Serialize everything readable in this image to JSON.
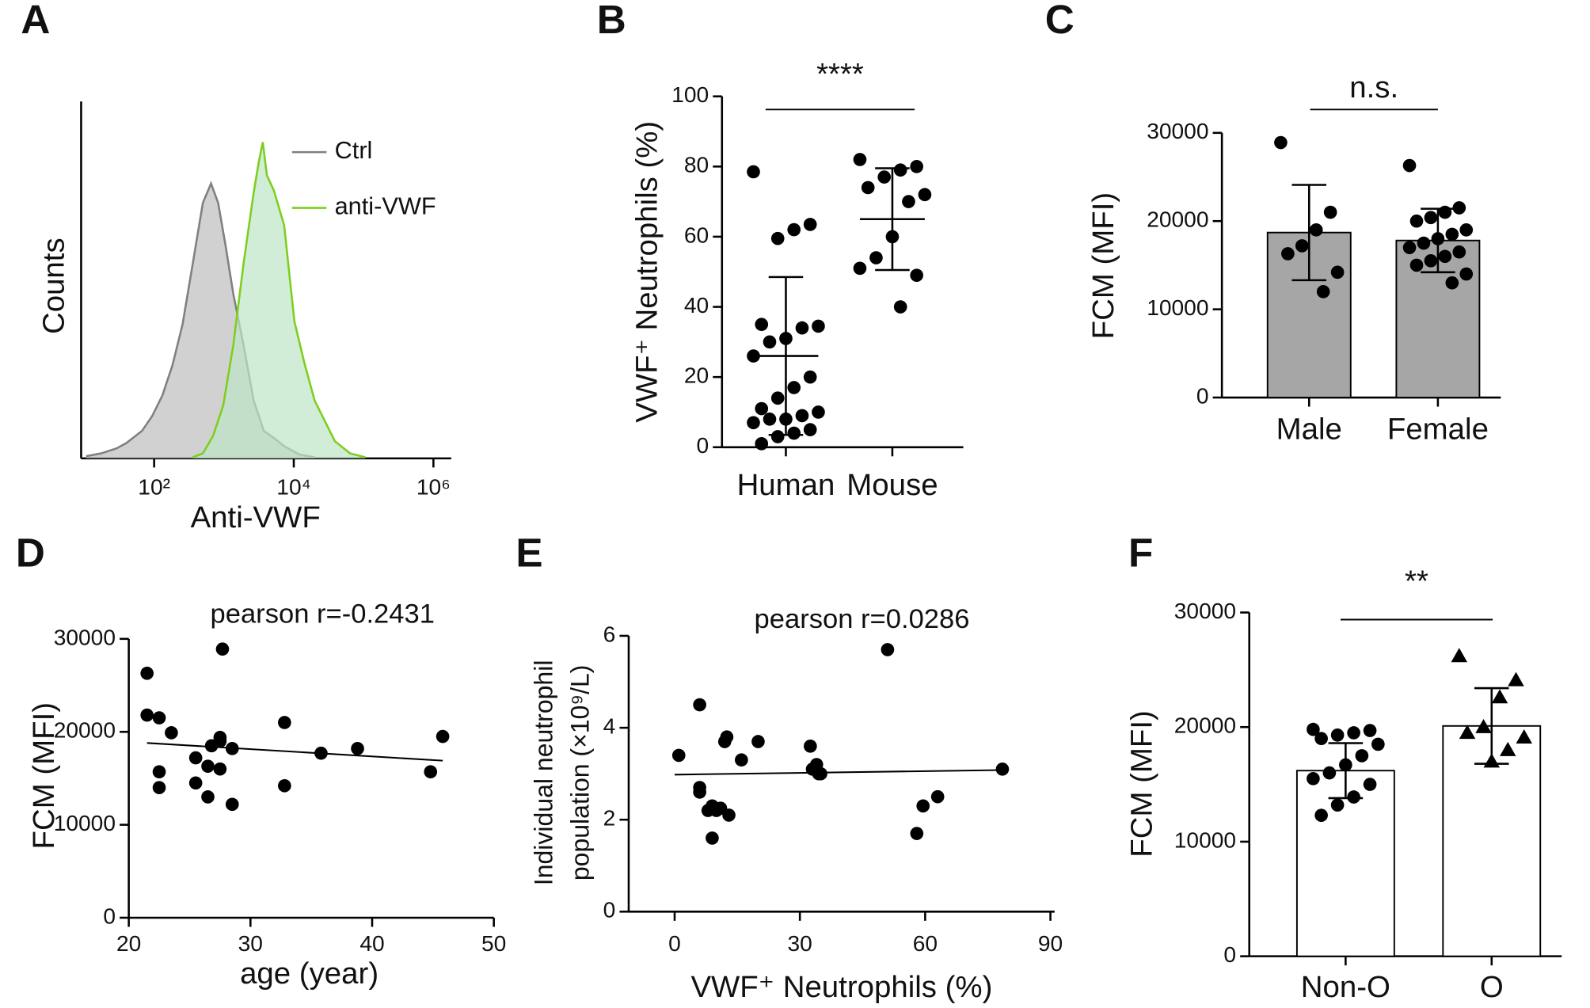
{
  "chart_data": [
    {
      "type": "area",
      "label": "A",
      "xlabel": "Anti-VWF",
      "ylabel": "Counts",
      "xscale": "log",
      "xlim": [
        9,
        1800000
      ],
      "ylim": [
        0,
        100
      ],
      "xticks": [
        {
          "value": 100,
          "label": "10²"
        },
        {
          "value": 10000,
          "label": "10⁴"
        },
        {
          "value": 1000000,
          "label": "10⁶"
        }
      ],
      "legend": "upper right",
      "series": [
        {
          "name": "Ctrl",
          "color": "#808080",
          "fill": "#bdbdbd",
          "x": [
            10.6,
            17.5,
            29,
            40,
            67,
            94,
            131,
            183,
            255,
            357,
            499,
            653,
            825,
            1042,
            1363,
            1906,
            2663,
            3720,
            5200,
            7280,
            12000,
            19900
          ],
          "values": [
            0.6,
            1.4,
            2.8,
            4.3,
            7.7,
            11.9,
            17.6,
            26.1,
            37.5,
            54.5,
            71.6,
            77,
            71.6,
            60.2,
            46,
            31.8,
            16.2,
            7.7,
            5.7,
            3.4,
            1.1,
            0.3
          ]
        },
        {
          "name": "anti-VWF",
          "color": "#7ccf1c",
          "fill": "#bfe6c6",
          "x": [
            357,
            499,
            698,
            975,
            1363,
            1906,
            2663,
            3150,
            3600,
            4120,
            5200,
            7280,
            10200,
            14200,
            19900,
            27800,
            38800,
            64100,
            106000
          ],
          "values": [
            0.3,
            1.4,
            6.3,
            14.8,
            31.8,
            54.5,
            74.4,
            83,
            88.6,
            79.3,
            75,
            65.3,
            38.4,
            26.7,
            16.2,
            10.5,
            4.8,
            1.4,
            0.3
          ]
        }
      ]
    },
    {
      "type": "dot",
      "label": "B",
      "ylabel": "VWF⁺ Neutrophils (%)",
      "annotation": "****",
      "categories": [
        "Human",
        "Mouse"
      ],
      "ylim": [
        0,
        100
      ],
      "yticks": [
        0,
        20,
        40,
        60,
        80,
        100
      ],
      "values": [
        26,
        65
      ],
      "errors": [
        22.5,
        14.5
      ],
      "points": [
        [
          78.5,
          63.5,
          62,
          59.5,
          35,
          34.5,
          34,
          31,
          30,
          26,
          20,
          17,
          14,
          11,
          10,
          9,
          8,
          8,
          7,
          5,
          4,
          3,
          1
        ],
        [
          82,
          80,
          79,
          77,
          74,
          72,
          70,
          60,
          54,
          51,
          49,
          40
        ]
      ]
    },
    {
      "type": "bar",
      "label": "C",
      "ylabel": "FCM (MFI)",
      "annotation": "n.s.",
      "color": "#a6a6a6",
      "categories": [
        "Male",
        "Female"
      ],
      "ylim": [
        0,
        30000
      ],
      "yticks": [
        0,
        10000,
        20000,
        30000
      ],
      "values": [
        18700,
        17800
      ],
      "errors": [
        5400,
        3600
      ],
      "markers": [
        "circle",
        "circle"
      ],
      "points": [
        [
          28900,
          21000,
          19000,
          17200,
          16300,
          14200,
          12000
        ],
        [
          26300,
          21500,
          21000,
          20400,
          20000,
          19000,
          18500,
          18000,
          17500,
          17000,
          16500,
          16000,
          15500,
          15000,
          14000,
          13000
        ]
      ]
    },
    {
      "type": "scatter",
      "label": "D",
      "xlabel": "age (year)",
      "ylabel": "FCM (MFI)",
      "annotation": "pearson r=-0.2431",
      "xlim": [
        20,
        50
      ],
      "xticks": [
        20,
        30,
        40,
        50
      ],
      "ylim": [
        0,
        30000
      ],
      "yticks": [
        0,
        10000,
        20000,
        30000
      ],
      "x": [
        21.5,
        21.5,
        22.5,
        23.5,
        22.5,
        22.5,
        25.5,
        25.5,
        26.5,
        26.5,
        26.8,
        27.5,
        27.5,
        27.5,
        27.7,
        28.5,
        28.5,
        32.8,
        32.8,
        35.8,
        38.8,
        44.8,
        45.8
      ],
      "y": [
        26300,
        21800,
        21500,
        19900,
        15700,
        14000,
        17200,
        14500,
        13000,
        16300,
        18500,
        19400,
        19000,
        16000,
        28900,
        18200,
        12200,
        21000,
        14200,
        17700,
        18200,
        15700,
        19500
      ],
      "fit": {
        "x": [
          21.5,
          45.8
        ],
        "y": [
          18800,
          16900
        ]
      }
    },
    {
      "type": "scatter",
      "label": "E",
      "xlabel": "VWF⁺ Neutrophils (%)",
      "ylabel": [
        "Individual neutrophil",
        "population (×10⁹/L)"
      ],
      "annotation": "pearson r=0.0286",
      "xlim": [
        -11,
        91
      ],
      "xticks": [
        0,
        30,
        60,
        90
      ],
      "ylim": [
        0,
        6
      ],
      "yticks": [
        0,
        2,
        4,
        6
      ],
      "x": [
        1,
        6,
        6,
        6,
        8,
        9,
        9,
        10,
        11,
        12,
        12.5,
        13,
        16,
        20,
        32.5,
        33,
        34,
        34.5,
        35,
        51,
        58,
        59.5,
        63,
        78.5
      ],
      "y": [
        3.4,
        4.5,
        2.7,
        2.6,
        2.2,
        1.6,
        2.3,
        2.2,
        2.25,
        3.7,
        3.8,
        2.1,
        3.3,
        3.7,
        3.6,
        3.1,
        3.2,
        3.0,
        3.0,
        5.7,
        1.7,
        2.3,
        2.5,
        3.1
      ],
      "fit": {
        "x": [
          0,
          78.5
        ],
        "y": [
          2.98,
          3.08
        ]
      }
    },
    {
      "type": "bar",
      "label": "F",
      "ylabel": "FCM (MFI)",
      "annotation": "**",
      "color": "#ffffff",
      "categories": [
        "Non-O",
        "O"
      ],
      "ylim": [
        0,
        30000
      ],
      "yticks": [
        0,
        10000,
        20000,
        30000
      ],
      "values": [
        16200,
        20100
      ],
      "errors": [
        2400,
        3300
      ],
      "markers": [
        "circle",
        "triangle"
      ],
      "points": [
        [
          19800,
          19700,
          19500,
          19300,
          19000,
          18500,
          17500,
          16700,
          16000,
          15500,
          15000,
          13900,
          13200,
          12300
        ],
        [
          26200,
          24100,
          22600,
          20000,
          19500,
          19100,
          18000,
          17000
        ]
      ]
    }
  ]
}
